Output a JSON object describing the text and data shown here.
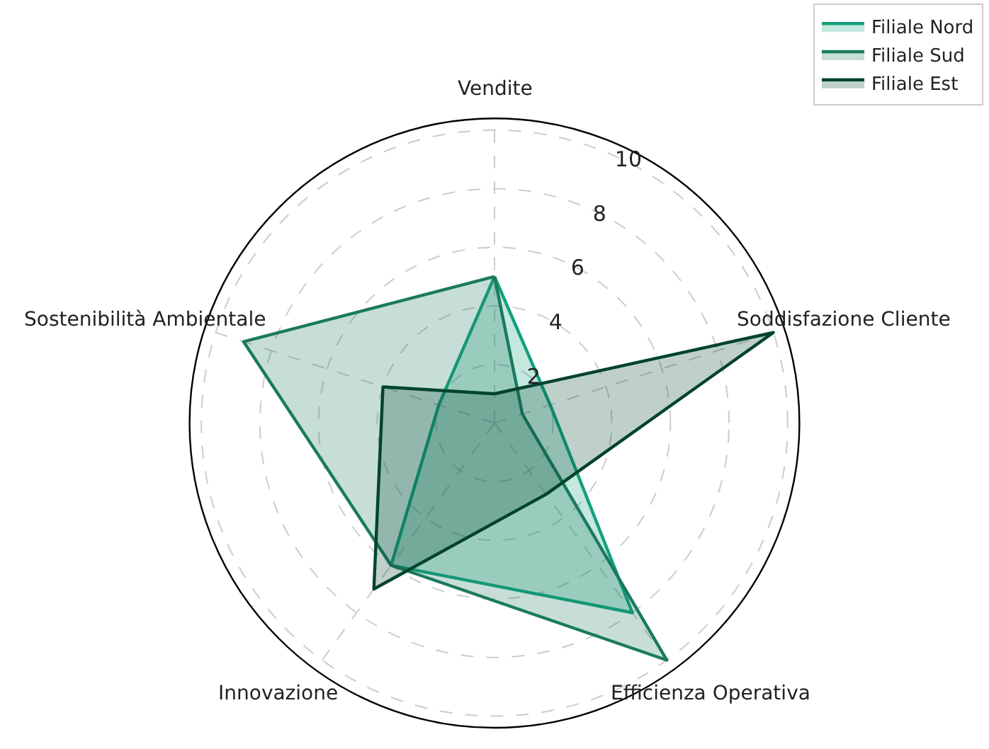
{
  "chart_data": {
    "type": "radar",
    "categories": [
      "Vendite",
      "Soddisfazione Cliente",
      "Efficienza Operativa",
      "Innovazione",
      "Sostenibilità Ambientale"
    ],
    "series": [
      {
        "name": "Filiale Nord",
        "color": "#12a07c",
        "values": [
          5,
          2,
          8,
          6,
          2
        ]
      },
      {
        "name": "Filiale Sud",
        "color": "#1b7a5e",
        "values": [
          5,
          1,
          10,
          6,
          9
        ]
      },
      {
        "name": "Filiale Est",
        "color": "#00432e",
        "values": [
          1,
          10,
          3,
          7,
          4
        ]
      }
    ],
    "ylim": [
      0,
      10.4
    ],
    "yticks": [
      2,
      4,
      6,
      8,
      10
    ],
    "grid": true,
    "legend": "top right",
    "line_style": "solid",
    "marker": "none"
  }
}
